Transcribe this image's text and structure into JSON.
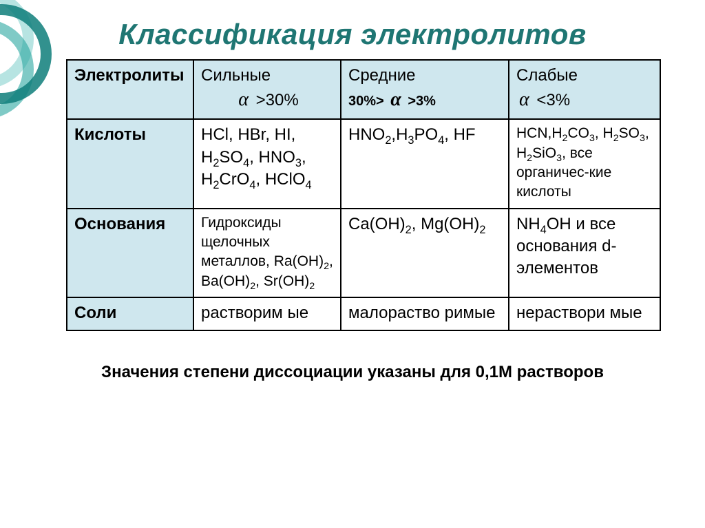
{
  "title": "Классификация электролитов",
  "header": {
    "col0": "Электролиты",
    "col1_top": "Сильные",
    "col1_sub_pre": "",
    "col1_alpha": "α",
    "col1_sub_post": " >30%",
    "col2_top": "Средние",
    "col2_sub_pre": "30%> ",
    "col2_alpha": "α",
    "col2_sub_post": " >3%",
    "col3_top": "Слабые",
    "col3_sub_pre": "",
    "col3_alpha": "α",
    "col3_sub_post": " <3%"
  },
  "rows": {
    "acids": {
      "label": "Кислоты",
      "strong_html": "HCl, HBr, HI, H<sub>2</sub>SO<sub>4</sub>, HNO<sub>3</sub>, H<sub>2</sub>CrO<sub>4</sub>, HClO<sub>4</sub>",
      "medium_html": "HNO<sub>2</sub>,H<sub>3</sub>PO<sub>4</sub>, HF",
      "weak_html": "HCN,H<sub>2</sub>CO<sub>3</sub>, H<sub>2</sub>SO<sub>3</sub>, H<sub>2</sub>SiO<sub>3</sub>, все органичес-кие кислоты"
    },
    "bases": {
      "label": "Основания",
      "strong_html": "Гидроксиды щелочных металлов, Ra(OH)<sub>2</sub>, Ba(OH)<sub>2</sub>, Sr(OH)<sub>2</sub>",
      "medium_html": "Ca(OH)<sub>2</sub>, Mg(OH)<sub>2</sub>",
      "weak_html": "NH<sub>4</sub>OH и все основания d-элементов"
    },
    "salts": {
      "label": "Соли",
      "strong_html": "растворим ые",
      "medium_html": "малораство римые",
      "weak_html": "нераствори мые"
    }
  },
  "footnote": "Значения степени диссоциации указаны для 0,1М растворов",
  "colors": {
    "title": "#1f7673",
    "header_bg": "#cfe7ee",
    "border": "#000000",
    "ring_dark": "#0e7e7a",
    "ring_mid": "#29a6a0",
    "ring_light": "#5fc4be"
  }
}
